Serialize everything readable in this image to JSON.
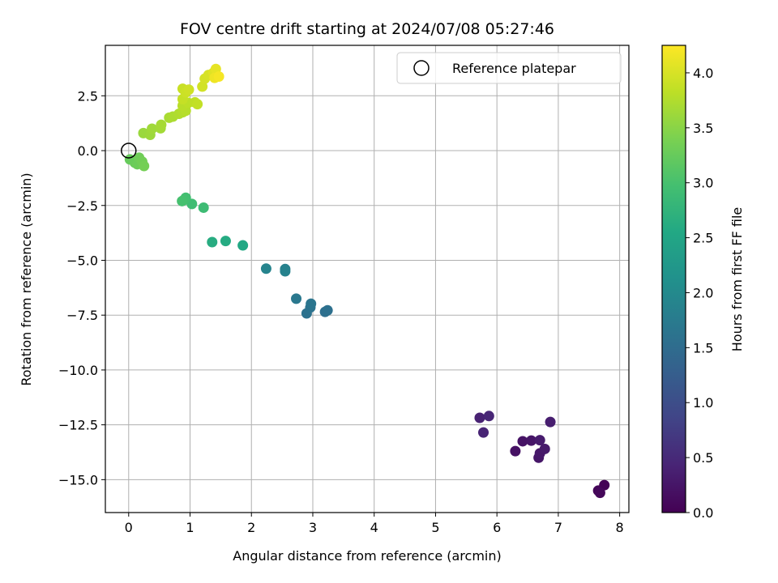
{
  "chart_data": {
    "type": "scatter",
    "title": "FOV centre drift starting at 2024/07/08 05:27:46",
    "xlabel": "Angular distance from reference (arcmin)",
    "ylabel": "Rotation from reference (arcmin)",
    "xlim": [
      -0.38,
      8.15
    ],
    "ylim": [
      -16.5,
      4.8
    ],
    "grid": true,
    "x_ticks": [
      0,
      1,
      2,
      3,
      4,
      5,
      6,
      7,
      8
    ],
    "x_tick_labels": [
      "0",
      "1",
      "2",
      "3",
      "4",
      "5",
      "6",
      "7",
      "8"
    ],
    "y_ticks": [
      2.5,
      0.0,
      -2.5,
      -5.0,
      -7.5,
      -10.0,
      -12.5,
      -15.0
    ],
    "y_tick_labels": [
      "2.5",
      "0.0",
      "−2.5",
      "−5.0",
      "−7.5",
      "−10.0",
      "−12.5",
      "−15.0"
    ],
    "colormap": "viridis",
    "colorbar": {
      "label": "Hours from first FF file",
      "range": [
        0.0,
        4.25
      ],
      "ticks": [
        0.0,
        0.5,
        1.0,
        1.5,
        2.0,
        2.5,
        3.0,
        3.5,
        4.0
      ],
      "tick_labels": [
        "0.0",
        "0.5",
        "1.0",
        "1.5",
        "2.0",
        "2.5",
        "3.0",
        "3.5",
        "4.0"
      ]
    },
    "legend": {
      "placement": "top-right",
      "entries": [
        "Reference platepar"
      ]
    },
    "reference_point": {
      "x": 0.0,
      "y": 0.0
    },
    "points": [
      {
        "x": 7.75,
        "y": -15.25,
        "c": 0.02
      },
      {
        "x": 7.65,
        "y": -15.5,
        "c": 0.05
      },
      {
        "x": 7.68,
        "y": -15.6,
        "c": 0.08
      },
      {
        "x": 6.3,
        "y": -13.7,
        "c": 0.2
      },
      {
        "x": 6.42,
        "y": -13.25,
        "c": 0.22
      },
      {
        "x": 6.56,
        "y": -13.22,
        "c": 0.24
      },
      {
        "x": 6.68,
        "y": -14.0,
        "c": 0.26
      },
      {
        "x": 6.7,
        "y": -13.8,
        "c": 0.28
      },
      {
        "x": 6.78,
        "y": -13.6,
        "c": 0.3
      },
      {
        "x": 6.7,
        "y": -13.2,
        "c": 0.32
      },
      {
        "x": 6.87,
        "y": -12.37,
        "c": 0.35
      },
      {
        "x": 5.72,
        "y": -12.18,
        "c": 0.4
      },
      {
        "x": 5.78,
        "y": -12.85,
        "c": 0.42
      },
      {
        "x": 5.87,
        "y": -12.1,
        "c": 0.45
      },
      {
        "x": 3.2,
        "y": -7.35,
        "c": 1.55
      },
      {
        "x": 3.24,
        "y": -7.28,
        "c": 1.57
      },
      {
        "x": 2.9,
        "y": -7.42,
        "c": 1.6
      },
      {
        "x": 2.96,
        "y": -7.15,
        "c": 1.62
      },
      {
        "x": 2.97,
        "y": -6.98,
        "c": 1.65
      },
      {
        "x": 2.73,
        "y": -6.75,
        "c": 1.7
      },
      {
        "x": 2.55,
        "y": -5.4,
        "c": 1.85
      },
      {
        "x": 2.55,
        "y": -5.5,
        "c": 1.87
      },
      {
        "x": 2.24,
        "y": -5.38,
        "c": 1.9
      },
      {
        "x": 1.86,
        "y": -4.32,
        "c": 2.55
      },
      {
        "x": 1.58,
        "y": -4.12,
        "c": 2.6
      },
      {
        "x": 1.36,
        "y": -4.17,
        "c": 2.62
      },
      {
        "x": 1.22,
        "y": -2.6,
        "c": 2.9
      },
      {
        "x": 1.03,
        "y": -2.43,
        "c": 2.92
      },
      {
        "x": 0.93,
        "y": -2.15,
        "c": 2.95
      },
      {
        "x": 0.9,
        "y": -2.25,
        "c": 2.97
      },
      {
        "x": 0.87,
        "y": -2.3,
        "c": 2.99
      },
      {
        "x": 0.02,
        "y": -0.4,
        "c": 3.25
      },
      {
        "x": 0.1,
        "y": -0.55,
        "c": 3.27
      },
      {
        "x": 0.14,
        "y": -0.62,
        "c": 3.29
      },
      {
        "x": 0.17,
        "y": -0.32,
        "c": 3.31
      },
      {
        "x": 0.22,
        "y": -0.5,
        "c": 3.33
      },
      {
        "x": 0.25,
        "y": -0.7,
        "c": 3.35
      },
      {
        "x": 0.24,
        "y": 0.8,
        "c": 3.6
      },
      {
        "x": 0.35,
        "y": 0.72,
        "c": 3.62
      },
      {
        "x": 0.38,
        "y": 1.0,
        "c": 3.64
      },
      {
        "x": 0.52,
        "y": 1.02,
        "c": 3.66
      },
      {
        "x": 0.53,
        "y": 1.18,
        "c": 3.68
      },
      {
        "x": 0.66,
        "y": 1.5,
        "c": 3.7
      },
      {
        "x": 0.72,
        "y": 1.55,
        "c": 3.72
      },
      {
        "x": 0.82,
        "y": 1.68,
        "c": 3.74
      },
      {
        "x": 0.88,
        "y": 1.75,
        "c": 3.76
      },
      {
        "x": 0.93,
        "y": 1.82,
        "c": 3.78
      },
      {
        "x": 0.88,
        "y": 2.05,
        "c": 3.8
      },
      {
        "x": 0.97,
        "y": 2.18,
        "c": 3.82
      },
      {
        "x": 1.08,
        "y": 2.2,
        "c": 3.84
      },
      {
        "x": 1.12,
        "y": 2.12,
        "c": 3.86
      },
      {
        "x": 0.88,
        "y": 2.35,
        "c": 3.88
      },
      {
        "x": 0.88,
        "y": 2.82,
        "c": 3.9
      },
      {
        "x": 0.93,
        "y": 2.65,
        "c": 3.92
      },
      {
        "x": 0.98,
        "y": 2.78,
        "c": 3.94
      },
      {
        "x": 1.2,
        "y": 2.92,
        "c": 3.96
      },
      {
        "x": 1.24,
        "y": 3.28,
        "c": 3.98
      },
      {
        "x": 1.3,
        "y": 3.45,
        "c": 4.0
      },
      {
        "x": 1.38,
        "y": 3.55,
        "c": 4.05
      },
      {
        "x": 1.42,
        "y": 3.72,
        "c": 4.1
      },
      {
        "x": 1.4,
        "y": 3.32,
        "c": 4.15
      },
      {
        "x": 1.47,
        "y": 3.38,
        "c": 4.2
      }
    ]
  }
}
